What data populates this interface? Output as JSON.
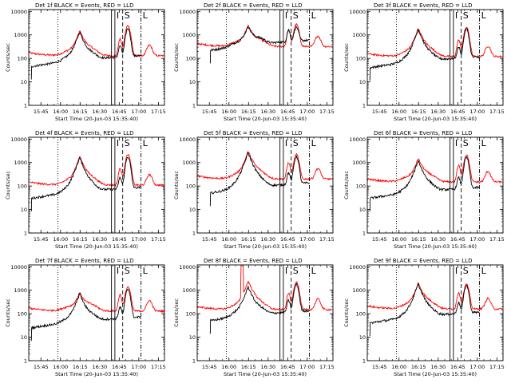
{
  "figure": {
    "background": "#ffffff",
    "colors": {
      "events": "#000000",
      "lld": "#ff0000"
    }
  },
  "chart_data": {
    "type": "line",
    "panel_layout": {
      "rows": 3,
      "cols": 3
    },
    "shared": {
      "xlabel": "Start Time (20-Jun-03 15:35:40)",
      "ylabel": "Counts/sec",
      "x_ticks": [
        "15:45",
        "16:00",
        "16:15",
        "16:30",
        "16:45",
        "17:00",
        "17:15"
      ],
      "x_tick_minutes": [
        9.33,
        24.33,
        39.33,
        54.33,
        69.33,
        84.33,
        99.33
      ],
      "xlim_minutes": [
        0,
        104
      ],
      "y_scale": "log",
      "y_ticks": [
        "1",
        "10",
        "100",
        "1000",
        "10000"
      ],
      "y_tick_values": [
        1,
        10,
        100,
        1000,
        10000
      ],
      "ylim": [
        1,
        12000
      ],
      "series_legend": "BLACK = Events, RED = LLD",
      "markers": [
        {
          "label": "",
          "style": "dotted",
          "minute": 22.3
        },
        {
          "label": "I",
          "style": "solid",
          "minute": 66.0
        },
        {
          "label": "S",
          "style": "dashed",
          "minute": 72.0
        },
        {
          "label": "L",
          "style": "dashdot",
          "minute": 86.0
        }
      ]
    },
    "panels": [
      {
        "title": "Det 1f BLACK = Events, RED = LLD",
        "events_start_minute": 2,
        "red_base": 130,
        "black_base": 45,
        "peak_red": 1500,
        "peak_black": 1300,
        "flare2_red": 2500,
        "flare2_black": 1800,
        "red_spike": false
      },
      {
        "title": "Det 2f BLACK = Events, RED = LLD",
        "events_start_minute": 10,
        "red_base": 320,
        "black_base": 220,
        "peak_red": 2600,
        "peak_black": 2200,
        "flare2_red": 2800,
        "flare2_black": 1800,
        "red_spike": false
      },
      {
        "title": "Det 3f BLACK = Events, RED = LLD",
        "events_start_minute": 2,
        "red_base": 120,
        "black_base": 40,
        "peak_red": 1900,
        "peak_black": 1700,
        "flare2_red": 2100,
        "flare2_black": 1700,
        "red_spike": false
      },
      {
        "title": "Det 4f BLACK = Events, RED = LLD",
        "events_start_minute": 2,
        "red_base": 110,
        "black_base": 30,
        "peak_red": 1800,
        "peak_black": 1600,
        "flare2_red": 2200,
        "flare2_black": 1700,
        "red_spike": false
      },
      {
        "title": "Det 5f BLACK = Events, RED = LLD",
        "events_start_minute": 10,
        "red_base": 200,
        "black_base": 50,
        "peak_red": 3000,
        "peak_black": 2600,
        "flare2_red": 2200,
        "flare2_black": 1700,
        "red_spike": false
      },
      {
        "title": "Det 6f BLACK = Events, RED = LLD",
        "events_start_minute": 2,
        "red_base": 150,
        "black_base": 30,
        "peak_red": 1500,
        "peak_black": 1200,
        "flare2_red": 2100,
        "flare2_black": 1600,
        "red_spike": false
      },
      {
        "title": "Det 7f BLACK = Events, RED = LLD",
        "events_start_minute": 2,
        "red_base": 130,
        "black_base": 25,
        "peak_red": 800,
        "peak_black": 700,
        "flare2_red": 1400,
        "flare2_black": 1100,
        "red_spike": false
      },
      {
        "title": "Det 8f BLACK = Events, RED = LLD",
        "events_start_minute": 10,
        "red_base": 150,
        "black_base": 50,
        "peak_red": 2500,
        "peak_black": 1400,
        "flare2_red": 2300,
        "flare2_black": 1700,
        "red_spike": true
      },
      {
        "title": "Det 9f BLACK = Events, RED = LLD",
        "events_start_minute": 2,
        "red_base": 160,
        "black_base": 40,
        "peak_red": 2000,
        "peak_black": 1800,
        "flare2_red": 1800,
        "flare2_black": 1500,
        "red_spike": false
      }
    ]
  }
}
